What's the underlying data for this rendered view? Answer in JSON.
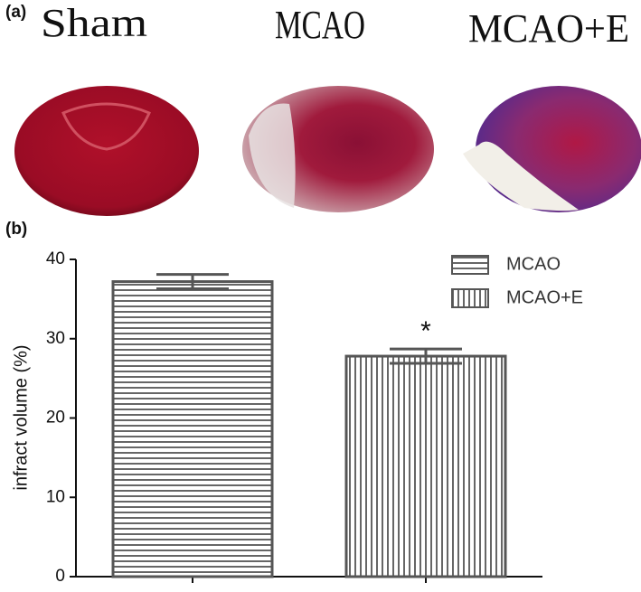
{
  "panel_a": {
    "label": "(a)",
    "groups": [
      "Sham",
      "MCAO",
      "MCAO+E"
    ]
  },
  "chart_data": {
    "type": "bar",
    "panel_label": "(b)",
    "ylabel": "infract volume (%)",
    "categories": [
      null,
      null
    ],
    "series": [
      {
        "name": "MCAO",
        "color": "#666666",
        "pattern": "horizontal",
        "values": [
          37.2,
          null
        ],
        "errors": [
          0.9,
          null
        ]
      },
      {
        "name": "MCAO+E",
        "color": "#666666",
        "pattern": "vertical",
        "values": [
          null,
          27.8
        ],
        "errors": [
          null,
          0.9
        ]
      }
    ],
    "annotation": "*",
    "ylim": [
      0,
      40
    ],
    "yticks": [
      0,
      10,
      20,
      30,
      40
    ],
    "grid": false,
    "legend": "upper right"
  }
}
